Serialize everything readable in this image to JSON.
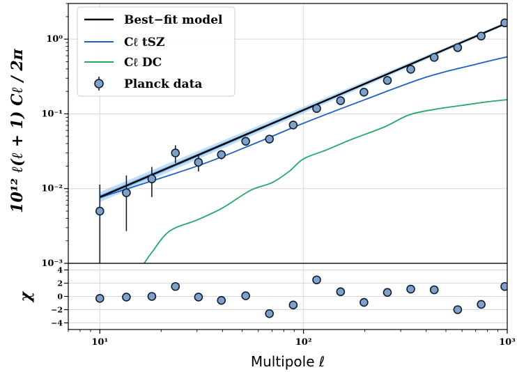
{
  "chart_data": [
    {
      "type": "line",
      "panel": "main",
      "ylabel": "10¹² ℓ(ℓ + 1) Cℓ / 2π",
      "xscale": "log",
      "yscale": "log",
      "xlim": [
        7,
        1000
      ],
      "ylim": [
        0.001,
        3
      ],
      "x_tick_labels": [
        "10¹",
        "10²",
        "10³"
      ],
      "y_tick_labels": [
        "10⁻³",
        "10⁻²",
        "10⁻¹",
        "10⁰"
      ],
      "grid": true,
      "legend_position": "top-left",
      "series": [
        {
          "name": "Best−fit model",
          "kind": "line",
          "color": "#000000",
          "x": [
            10,
            1000
          ],
          "y": [
            0.0077,
            1.65
          ],
          "band_inner": [
            [
              0.0072,
              0.0082
            ],
            [
              1.62,
              1.68
            ]
          ],
          "band_outer": [
            [
              0.0066,
              0.009
            ],
            [
              1.58,
              1.72
            ]
          ]
        },
        {
          "name": "Cℓ tSZ",
          "kind": "line",
          "color": "#1f5fbf",
          "x": [
            10,
            30,
            60,
            100,
            200,
            400,
            700,
            1000
          ],
          "y": [
            0.0076,
            0.02,
            0.042,
            0.075,
            0.155,
            0.31,
            0.46,
            0.58
          ]
        },
        {
          "name": "Cℓ DC",
          "kind": "line",
          "color": "#22aa66",
          "x": [
            16.5,
            18,
            22,
            30,
            40,
            55,
            70,
            85,
            100,
            130,
            170,
            250,
            330,
            450,
            600,
            800,
            1000
          ],
          "y": [
            0.001,
            0.0014,
            0.0027,
            0.0038,
            0.0055,
            0.0095,
            0.012,
            0.017,
            0.025,
            0.033,
            0.045,
            0.067,
            0.097,
            0.116,
            0.13,
            0.145,
            0.155
          ]
        },
        {
          "name": "Planck data",
          "kind": "errorbar",
          "color": "#7fa0c8",
          "x": [
            10,
            13.5,
            18,
            23.5,
            30.5,
            39.5,
            52,
            68,
            89,
            116,
            152,
            198,
            258,
            336,
            438,
            571,
            745,
            973
          ],
          "y": [
            0.005,
            0.0088,
            0.0135,
            0.03,
            0.0225,
            0.0285,
            0.043,
            0.046,
            0.071,
            0.118,
            0.15,
            0.195,
            0.28,
            0.395,
            0.57,
            0.77,
            1.1,
            1.65
          ],
          "yerr_low": [
            0.0045,
            0.0061,
            0.0058,
            0.008,
            0.0055,
            0.004,
            0.004,
            0.006,
            0.007,
            0.008,
            0.01,
            0.013,
            0.018,
            0.025,
            0.035,
            0.05,
            0.07,
            0.1
          ],
          "yerr_high": [
            0.0063,
            0.0062,
            0.006,
            0.008,
            0.0055,
            0.004,
            0.004,
            0.006,
            0.007,
            0.008,
            0.01,
            0.013,
            0.018,
            0.025,
            0.035,
            0.05,
            0.07,
            0.1
          ]
        }
      ]
    },
    {
      "type": "scatter",
      "panel": "residuals",
      "xlabel": "Multipole ℓ",
      "ylabel": "χ",
      "xscale": "log",
      "xlim": [
        7,
        1000
      ],
      "ylim": [
        -5,
        5
      ],
      "y_ticks": [
        -4,
        -2,
        0,
        2,
        4
      ],
      "y_tick_labels": [
        "−4",
        "−2",
        "0",
        "2",
        "4"
      ],
      "grid": true,
      "series": [
        {
          "kind": "scatter",
          "color": "#7fa0c8",
          "x": [
            10,
            13.5,
            18,
            23.5,
            30.5,
            39.5,
            52,
            68,
            89,
            116,
            152,
            198,
            258,
            336,
            438,
            571,
            745,
            973
          ],
          "y": [
            -0.3,
            -0.1,
            0.0,
            1.5,
            -0.1,
            -0.6,
            0.1,
            -2.6,
            -1.3,
            2.5,
            0.7,
            -0.9,
            0.6,
            1.1,
            1.0,
            -2.0,
            -1.2,
            1.5
          ]
        }
      ]
    }
  ]
}
